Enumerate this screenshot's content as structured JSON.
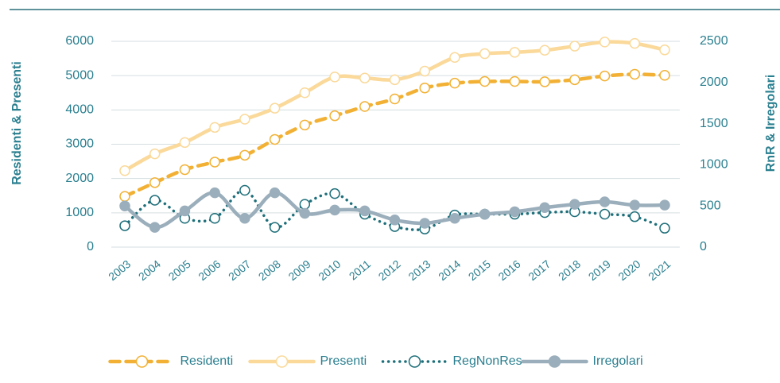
{
  "chart_data": {
    "type": "line",
    "y_label": "Residenti & Presenti",
    "y2_label": "RnR & Irregolari",
    "x": [
      "2003",
      "2004",
      "2005",
      "2006",
      "2007",
      "2008",
      "2009",
      "2010",
      "2011",
      "2012",
      "2013",
      "2014",
      "2015",
      "2016",
      "2017",
      "2018",
      "2019",
      "2020",
      "2021"
    ],
    "ylim": [
      0,
      6000
    ],
    "yticks": [
      0,
      1000,
      2000,
      3000,
      4000,
      5000,
      6000
    ],
    "y2lim": [
      0,
      2500
    ],
    "y2ticks": [
      0,
      500,
      1000,
      1500,
      2000,
      2500
    ],
    "grid": true,
    "legend": "bottom",
    "series": [
      {
        "name": "Residenti",
        "color": "#f2b134",
        "style": "dashed",
        "values": [
          1480,
          1880,
          2260,
          2480,
          2680,
          3140,
          3560,
          3830,
          4100,
          4320,
          4640,
          4780,
          4830,
          4830,
          4820,
          4880,
          4990,
          5040,
          5010
        ]
      },
      {
        "name": "Presenti",
        "color": "#fad99a",
        "style": "solid",
        "values": [
          2230,
          2720,
          3050,
          3490,
          3730,
          4050,
          4500,
          4960,
          4930,
          4880,
          5130,
          5530,
          5640,
          5680,
          5740,
          5860,
          5980,
          5940,
          5750
        ]
      },
      {
        "name": "RegNonRes",
        "color": "#1f6f7a",
        "style": "dotted",
        "axis": "y2",
        "values": [
          260,
          570,
          350,
          350,
          690,
          240,
          520,
          650,
          400,
          250,
          220,
          390,
          400,
          400,
          420,
          430,
          400,
          370,
          230
        ]
      },
      {
        "name": "Irregolari",
        "color": "#9aaebb",
        "style": "solid-filled",
        "axis": "y2",
        "values": [
          500,
          240,
          440,
          660,
          350,
          660,
          410,
          450,
          440,
          330,
          290,
          350,
          400,
          430,
          480,
          520,
          550,
          510,
          510
        ]
      }
    ]
  }
}
